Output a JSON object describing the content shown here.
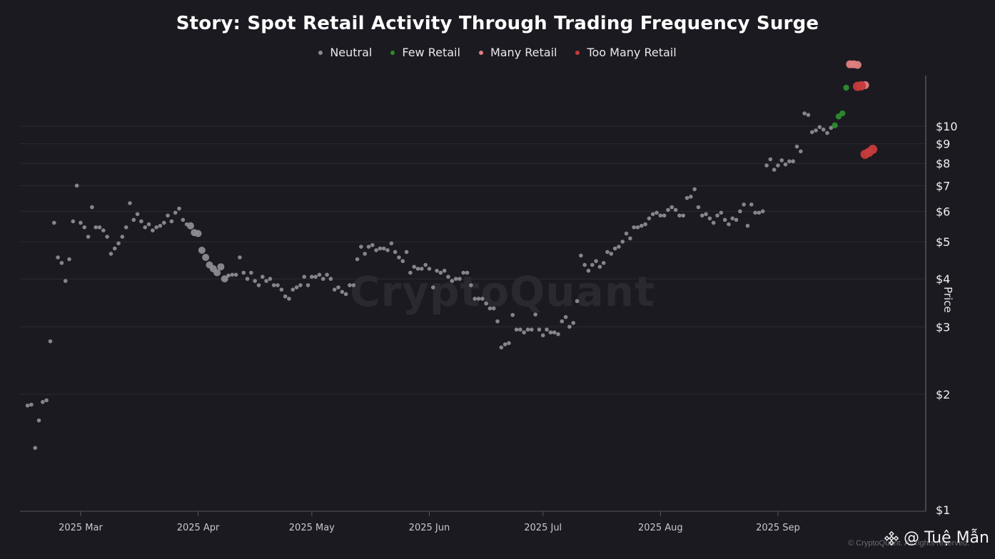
{
  "chart_data": {
    "type": "scatter",
    "title": "Story: Spot Retail Activity Through Trading Frequency Surge",
    "ylabel": "Price",
    "yscale": "log",
    "ylim": [
      1,
      15
    ],
    "y_ticks": [
      {
        "value": 10,
        "label": "$10"
      },
      {
        "value": 9,
        "label": "$9"
      },
      {
        "value": 8,
        "label": "$8"
      },
      {
        "value": 7,
        "label": "$7"
      },
      {
        "value": 6,
        "label": "$6"
      },
      {
        "value": 5,
        "label": "$5"
      },
      {
        "value": 4,
        "label": "$4"
      },
      {
        "value": 3,
        "label": "$3"
      },
      {
        "value": 2,
        "label": "$2"
      },
      {
        "value": 1,
        "label": "$1"
      }
    ],
    "xlim": [
      "2025-02-13",
      "2025-10-10"
    ],
    "x_ticks": [
      {
        "date": "2025-03-01",
        "label": "2025 Mar"
      },
      {
        "date": "2025-04-01",
        "label": "2025 Apr"
      },
      {
        "date": "2025-05-01",
        "label": "2025 May"
      },
      {
        "date": "2025-06-01",
        "label": "2025 Jun"
      },
      {
        "date": "2025-07-01",
        "label": "2025 Jul"
      },
      {
        "date": "2025-08-01",
        "label": "2025 Aug"
      },
      {
        "date": "2025-09-01",
        "label": "2025 Sep"
      }
    ],
    "grid": true,
    "legend_position": "top-center",
    "series": [
      {
        "name": "Neutral",
        "color": "#8c8b94",
        "points": [
          [
            "2025-02-15",
            1.87
          ],
          [
            "2025-02-16",
            1.88
          ],
          [
            "2025-02-17",
            1.45
          ],
          [
            "2025-02-18",
            1.71
          ],
          [
            "2025-02-19",
            1.91
          ],
          [
            "2025-02-20",
            1.93
          ],
          [
            "2025-02-21",
            2.75
          ],
          [
            "2025-02-22",
            5.6
          ],
          [
            "2025-02-23",
            4.55
          ],
          [
            "2025-02-24",
            4.4
          ],
          [
            "2025-02-25",
            3.95
          ],
          [
            "2025-02-26",
            4.5
          ],
          [
            "2025-02-27",
            5.65
          ],
          [
            "2025-02-28",
            7.0
          ],
          [
            "2025-03-01",
            5.6
          ],
          [
            "2025-03-02",
            5.45
          ],
          [
            "2025-03-03",
            5.15
          ],
          [
            "2025-03-04",
            6.15
          ],
          [
            "2025-03-05",
            5.45
          ],
          [
            "2025-03-06",
            5.45
          ],
          [
            "2025-03-07",
            5.35
          ],
          [
            "2025-03-08",
            5.15
          ],
          [
            "2025-03-09",
            4.65
          ],
          [
            "2025-03-10",
            4.8
          ],
          [
            "2025-03-11",
            4.95
          ],
          [
            "2025-03-12",
            5.15
          ],
          [
            "2025-03-13",
            5.45
          ],
          [
            "2025-03-14",
            6.3
          ],
          [
            "2025-03-15",
            5.7
          ],
          [
            "2025-03-16",
            5.9
          ],
          [
            "2025-03-17",
            5.65
          ],
          [
            "2025-03-18",
            5.45
          ],
          [
            "2025-03-19",
            5.55
          ],
          [
            "2025-03-20",
            5.35
          ],
          [
            "2025-03-21",
            5.45
          ],
          [
            "2025-03-22",
            5.5
          ],
          [
            "2025-03-23",
            5.6
          ],
          [
            "2025-03-24",
            5.85
          ],
          [
            "2025-03-25",
            5.65
          ],
          [
            "2025-03-26",
            5.95
          ],
          [
            "2025-03-27",
            6.1
          ],
          [
            "2025-03-28",
            5.7
          ],
          [
            "2025-03-29",
            5.55
          ],
          [
            "2025-03-30",
            5.5
          ],
          [
            "2025-03-31",
            5.28
          ],
          [
            "2025-04-01",
            5.25
          ],
          [
            "2025-04-02",
            4.75
          ],
          [
            "2025-04-03",
            4.55
          ],
          [
            "2025-04-04",
            4.35
          ],
          [
            "2025-04-05",
            4.25
          ],
          [
            "2025-04-06",
            4.15
          ],
          [
            "2025-04-07",
            4.3
          ],
          [
            "2025-04-08",
            4.0
          ],
          [
            "2025-04-09",
            4.08
          ],
          [
            "2025-04-10",
            4.1
          ],
          [
            "2025-04-11",
            4.1
          ],
          [
            "2025-04-12",
            4.55
          ],
          [
            "2025-04-13",
            4.15
          ],
          [
            "2025-04-14",
            4.0
          ],
          [
            "2025-04-15",
            4.15
          ],
          [
            "2025-04-16",
            3.95
          ],
          [
            "2025-04-17",
            3.85
          ],
          [
            "2025-04-18",
            4.05
          ],
          [
            "2025-04-19",
            3.95
          ],
          [
            "2025-04-20",
            4.0
          ],
          [
            "2025-04-21",
            3.85
          ],
          [
            "2025-04-22",
            3.85
          ],
          [
            "2025-04-23",
            3.75
          ],
          [
            "2025-04-24",
            3.6
          ],
          [
            "2025-04-25",
            3.55
          ],
          [
            "2025-04-26",
            3.75
          ],
          [
            "2025-04-27",
            3.8
          ],
          [
            "2025-04-28",
            3.85
          ],
          [
            "2025-04-29",
            4.05
          ],
          [
            "2025-04-30",
            3.85
          ],
          [
            "2025-05-01",
            4.05
          ],
          [
            "2025-05-02",
            4.05
          ],
          [
            "2025-05-03",
            4.1
          ],
          [
            "2025-05-04",
            4.0
          ],
          [
            "2025-05-05",
            4.1
          ],
          [
            "2025-05-06",
            4.0
          ],
          [
            "2025-05-07",
            3.75
          ],
          [
            "2025-05-08",
            3.8
          ],
          [
            "2025-05-09",
            3.7
          ],
          [
            "2025-05-10",
            3.65
          ],
          [
            "2025-05-11",
            3.85
          ],
          [
            "2025-05-12",
            3.85
          ],
          [
            "2025-05-13",
            4.5
          ],
          [
            "2025-05-14",
            4.85
          ],
          [
            "2025-05-15",
            4.65
          ],
          [
            "2025-05-16",
            4.85
          ],
          [
            "2025-05-17",
            4.9
          ],
          [
            "2025-05-18",
            4.75
          ],
          [
            "2025-05-19",
            4.8
          ],
          [
            "2025-05-20",
            4.8
          ],
          [
            "2025-05-21",
            4.75
          ],
          [
            "2025-05-22",
            4.95
          ],
          [
            "2025-05-23",
            4.7
          ],
          [
            "2025-05-24",
            4.55
          ],
          [
            "2025-05-25",
            4.45
          ],
          [
            "2025-05-26",
            4.7
          ],
          [
            "2025-05-27",
            4.15
          ],
          [
            "2025-05-28",
            4.3
          ],
          [
            "2025-05-29",
            4.25
          ],
          [
            "2025-05-30",
            4.25
          ],
          [
            "2025-05-31",
            4.35
          ],
          [
            "2025-06-01",
            4.25
          ],
          [
            "2025-06-02",
            3.8
          ],
          [
            "2025-06-03",
            4.2
          ],
          [
            "2025-06-04",
            4.15
          ],
          [
            "2025-06-05",
            4.2
          ],
          [
            "2025-06-06",
            4.05
          ],
          [
            "2025-06-07",
            3.95
          ],
          [
            "2025-06-08",
            4.0
          ],
          [
            "2025-06-09",
            4.0
          ],
          [
            "2025-06-10",
            4.15
          ],
          [
            "2025-06-11",
            4.15
          ],
          [
            "2025-06-12",
            3.85
          ],
          [
            "2025-06-13",
            3.55
          ],
          [
            "2025-06-14",
            3.55
          ],
          [
            "2025-06-15",
            3.55
          ],
          [
            "2025-06-16",
            3.45
          ],
          [
            "2025-06-17",
            3.35
          ],
          [
            "2025-06-18",
            3.35
          ],
          [
            "2025-06-19",
            3.1
          ],
          [
            "2025-06-20",
            2.65
          ],
          [
            "2025-06-21",
            2.7
          ],
          [
            "2025-06-22",
            2.72
          ],
          [
            "2025-06-23",
            3.22
          ],
          [
            "2025-06-24",
            2.95
          ],
          [
            "2025-06-25",
            2.95
          ],
          [
            "2025-06-26",
            2.9
          ],
          [
            "2025-06-27",
            2.95
          ],
          [
            "2025-06-28",
            2.95
          ],
          [
            "2025-06-29",
            3.23
          ],
          [
            "2025-06-30",
            2.95
          ],
          [
            "2025-07-01",
            2.85
          ],
          [
            "2025-07-02",
            2.95
          ],
          [
            "2025-07-03",
            2.9
          ],
          [
            "2025-07-04",
            2.9
          ],
          [
            "2025-07-05",
            2.87
          ],
          [
            "2025-07-06",
            3.1
          ],
          [
            "2025-07-07",
            3.18
          ],
          [
            "2025-07-08",
            3.0
          ],
          [
            "2025-07-09",
            3.07
          ],
          [
            "2025-07-10",
            3.5
          ],
          [
            "2025-07-11",
            4.6
          ],
          [
            "2025-07-12",
            4.35
          ],
          [
            "2025-07-13",
            4.2
          ],
          [
            "2025-07-14",
            4.35
          ],
          [
            "2025-07-15",
            4.45
          ],
          [
            "2025-07-16",
            4.3
          ],
          [
            "2025-07-17",
            4.4
          ],
          [
            "2025-07-18",
            4.7
          ],
          [
            "2025-07-19",
            4.65
          ],
          [
            "2025-07-20",
            4.8
          ],
          [
            "2025-07-21",
            4.85
          ],
          [
            "2025-07-22",
            5.0
          ],
          [
            "2025-07-23",
            5.25
          ],
          [
            "2025-07-24",
            5.1
          ],
          [
            "2025-07-25",
            5.45
          ],
          [
            "2025-07-26",
            5.45
          ],
          [
            "2025-07-27",
            5.5
          ],
          [
            "2025-07-28",
            5.55
          ],
          [
            "2025-07-29",
            5.75
          ],
          [
            "2025-07-30",
            5.9
          ],
          [
            "2025-07-31",
            5.95
          ],
          [
            "2025-08-01",
            5.85
          ],
          [
            "2025-08-02",
            5.85
          ],
          [
            "2025-08-03",
            6.05
          ],
          [
            "2025-08-04",
            6.15
          ],
          [
            "2025-08-05",
            6.05
          ],
          [
            "2025-08-06",
            5.85
          ],
          [
            "2025-08-07",
            5.85
          ],
          [
            "2025-08-08",
            6.5
          ],
          [
            "2025-08-09",
            6.55
          ],
          [
            "2025-08-10",
            6.85
          ],
          [
            "2025-08-11",
            6.15
          ],
          [
            "2025-08-12",
            5.85
          ],
          [
            "2025-08-13",
            5.9
          ],
          [
            "2025-08-14",
            5.75
          ],
          [
            "2025-08-15",
            5.6
          ],
          [
            "2025-08-16",
            5.85
          ],
          [
            "2025-08-17",
            5.95
          ],
          [
            "2025-08-18",
            5.7
          ],
          [
            "2025-08-19",
            5.55
          ],
          [
            "2025-08-20",
            5.75
          ],
          [
            "2025-08-21",
            5.7
          ],
          [
            "2025-08-22",
            6.0
          ],
          [
            "2025-08-23",
            6.25
          ],
          [
            "2025-08-24",
            5.5
          ],
          [
            "2025-08-25",
            6.25
          ],
          [
            "2025-08-26",
            5.95
          ],
          [
            "2025-08-27",
            5.95
          ],
          [
            "2025-08-28",
            6.0
          ],
          [
            "2025-08-29",
            7.9
          ],
          [
            "2025-08-30",
            8.2
          ],
          [
            "2025-08-31",
            7.7
          ],
          [
            "2025-09-01",
            7.9
          ],
          [
            "2025-09-02",
            8.15
          ],
          [
            "2025-09-03",
            7.95
          ],
          [
            "2025-09-04",
            8.1
          ],
          [
            "2025-09-05",
            8.1
          ],
          [
            "2025-09-06",
            8.85
          ],
          [
            "2025-09-07",
            8.6
          ],
          [
            "2025-09-08",
            10.8
          ],
          [
            "2025-09-09",
            10.7
          ],
          [
            "2025-09-10",
            9.65
          ],
          [
            "2025-09-11",
            9.75
          ],
          [
            "2025-09-12",
            9.95
          ],
          [
            "2025-09-13",
            9.8
          ],
          [
            "2025-09-14",
            9.6
          ],
          [
            "2025-09-15",
            9.9
          ]
        ]
      },
      {
        "name": "Few Retail",
        "color": "#2e8b2e",
        "points": [
          [
            "2025-09-16",
            10.05
          ],
          [
            "2025-09-17",
            10.6
          ],
          [
            "2025-09-18",
            10.8
          ],
          [
            "2025-09-19",
            12.6
          ]
        ]
      },
      {
        "name": "Many Retail",
        "color": "#e07f7f",
        "points": [
          [
            "2025-09-20",
            14.5
          ],
          [
            "2025-09-21",
            14.5
          ],
          [
            "2025-09-22",
            14.45
          ],
          [
            "2025-09-23",
            12.7
          ],
          [
            "2025-09-24",
            12.8
          ]
        ]
      },
      {
        "name": "Too Many Retail",
        "color": "#c63b3b",
        "points": [
          [
            "2025-09-22",
            12.7
          ],
          [
            "2025-09-23",
            12.75
          ],
          [
            "2025-09-24",
            8.45
          ],
          [
            "2025-09-25",
            8.55
          ],
          [
            "2025-09-26",
            8.7
          ]
        ]
      }
    ]
  },
  "watermark": "CryptoQuant",
  "copyright": "© CryptoQuant. All rights reserved.",
  "author": "@ Tuệ Mẫn",
  "icons": {
    "author_logo": "binance-diamond-icon"
  }
}
